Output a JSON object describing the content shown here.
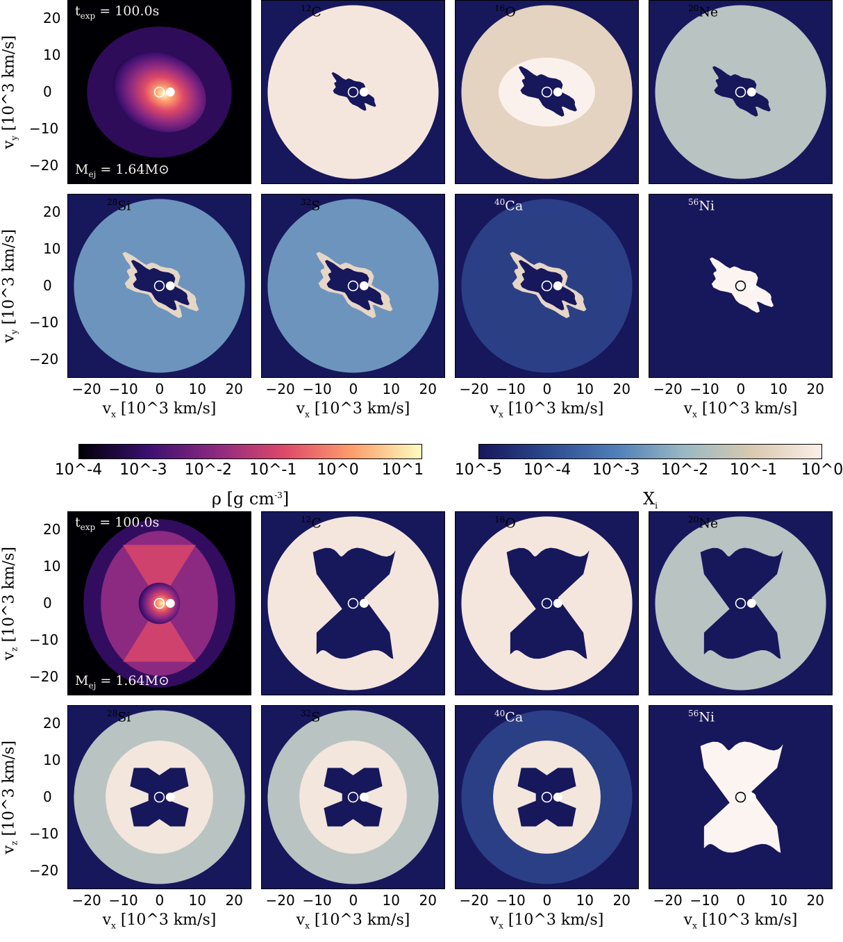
{
  "figure": {
    "rows": [
      {
        "ylabel": "v_y [10^3 km/s]",
        "panels": [
          {
            "kind": "density",
            "tl": "t_exp = 100.0s",
            "bl": "M_ej = 1.64M⊙",
            "geom": "blob"
          },
          {
            "kind": "abundance",
            "iso_mass": "12",
            "iso_el": "C",
            "field": "high",
            "core": "blob-thin"
          },
          {
            "kind": "abundance",
            "iso_mass": "16",
            "iso_el": "O",
            "field": "beige",
            "core": "blob-ring"
          },
          {
            "kind": "abundance",
            "iso_mass": "20",
            "iso_el": "Ne",
            "field": "mixed",
            "core": "blob"
          }
        ]
      },
      {
        "ylabel": "v_y [10^3 km/s]",
        "panels": [
          {
            "kind": "abundance",
            "iso_mass": "28",
            "iso_el": "Si",
            "field": "blue",
            "core": "blob-rim"
          },
          {
            "kind": "abundance",
            "iso_mass": "32",
            "iso_el": "S",
            "field": "blue",
            "core": "blob-rim"
          },
          {
            "kind": "abundance",
            "iso_mass": "40",
            "iso_el": "Ca",
            "field": "deep",
            "core": "blob-rim"
          },
          {
            "kind": "abundance",
            "iso_mass": "56",
            "iso_el": "Ni",
            "field": "none",
            "core": "blob-white"
          }
        ]
      },
      {
        "ylabel": "v_z [10^3 km/s]",
        "panels": [
          {
            "kind": "density",
            "tl": "t_exp = 100.0s",
            "bl": "M_ej = 1.64M⊙",
            "geom": "hourglass"
          },
          {
            "kind": "abundance",
            "iso_mass": "12",
            "iso_el": "C",
            "field": "high",
            "core": "hour"
          },
          {
            "kind": "abundance",
            "iso_mass": "16",
            "iso_el": "O",
            "field": "high",
            "core": "hour"
          },
          {
            "kind": "abundance",
            "iso_mass": "20",
            "iso_el": "Ne",
            "field": "mixed",
            "core": "hour"
          }
        ]
      },
      {
        "ylabel": "v_z [10^3 km/s]",
        "panels": [
          {
            "kind": "abundance",
            "iso_mass": "28",
            "iso_el": "Si",
            "field": "mixed",
            "core": "bowtie"
          },
          {
            "kind": "abundance",
            "iso_mass": "32",
            "iso_el": "S",
            "field": "mixed",
            "core": "bowtie"
          },
          {
            "kind": "abundance",
            "iso_mass": "40",
            "iso_el": "Ca",
            "field": "deep",
            "core": "bowtie"
          },
          {
            "kind": "abundance",
            "iso_mass": "56",
            "iso_el": "Ni",
            "field": "none",
            "core": "hour-white"
          }
        ]
      }
    ],
    "xlabel": "v_x [10^3 km/s]",
    "x_ticks": [
      "−20",
      "−10",
      "0",
      "10",
      "20"
    ],
    "y_ticks": [
      "20",
      "10",
      "0",
      "−10",
      "−20"
    ],
    "axis_range": [
      -25,
      25
    ]
  },
  "colorbars": {
    "density": {
      "label_sym": "ρ",
      "label_unit": "[g cm^-3]",
      "ticks": [
        "10^-4",
        "10^-3",
        "10^-2",
        "10^-1",
        "10^0",
        "10^1"
      ],
      "colors": [
        "#000004",
        "#3b0f70",
        "#8c2981",
        "#de4968",
        "#fe9f6d",
        "#fcfdbf"
      ]
    },
    "abundance": {
      "label": "X_i",
      "ticks": [
        "10^-5",
        "10^-4",
        "10^-3",
        "10^-2",
        "10^-1",
        "10^0"
      ],
      "colors": [
        "#17175c",
        "#2c4a8e",
        "#4f7fb8",
        "#9bb8c4",
        "#d9c9b0",
        "#fbefe8"
      ]
    }
  }
}
